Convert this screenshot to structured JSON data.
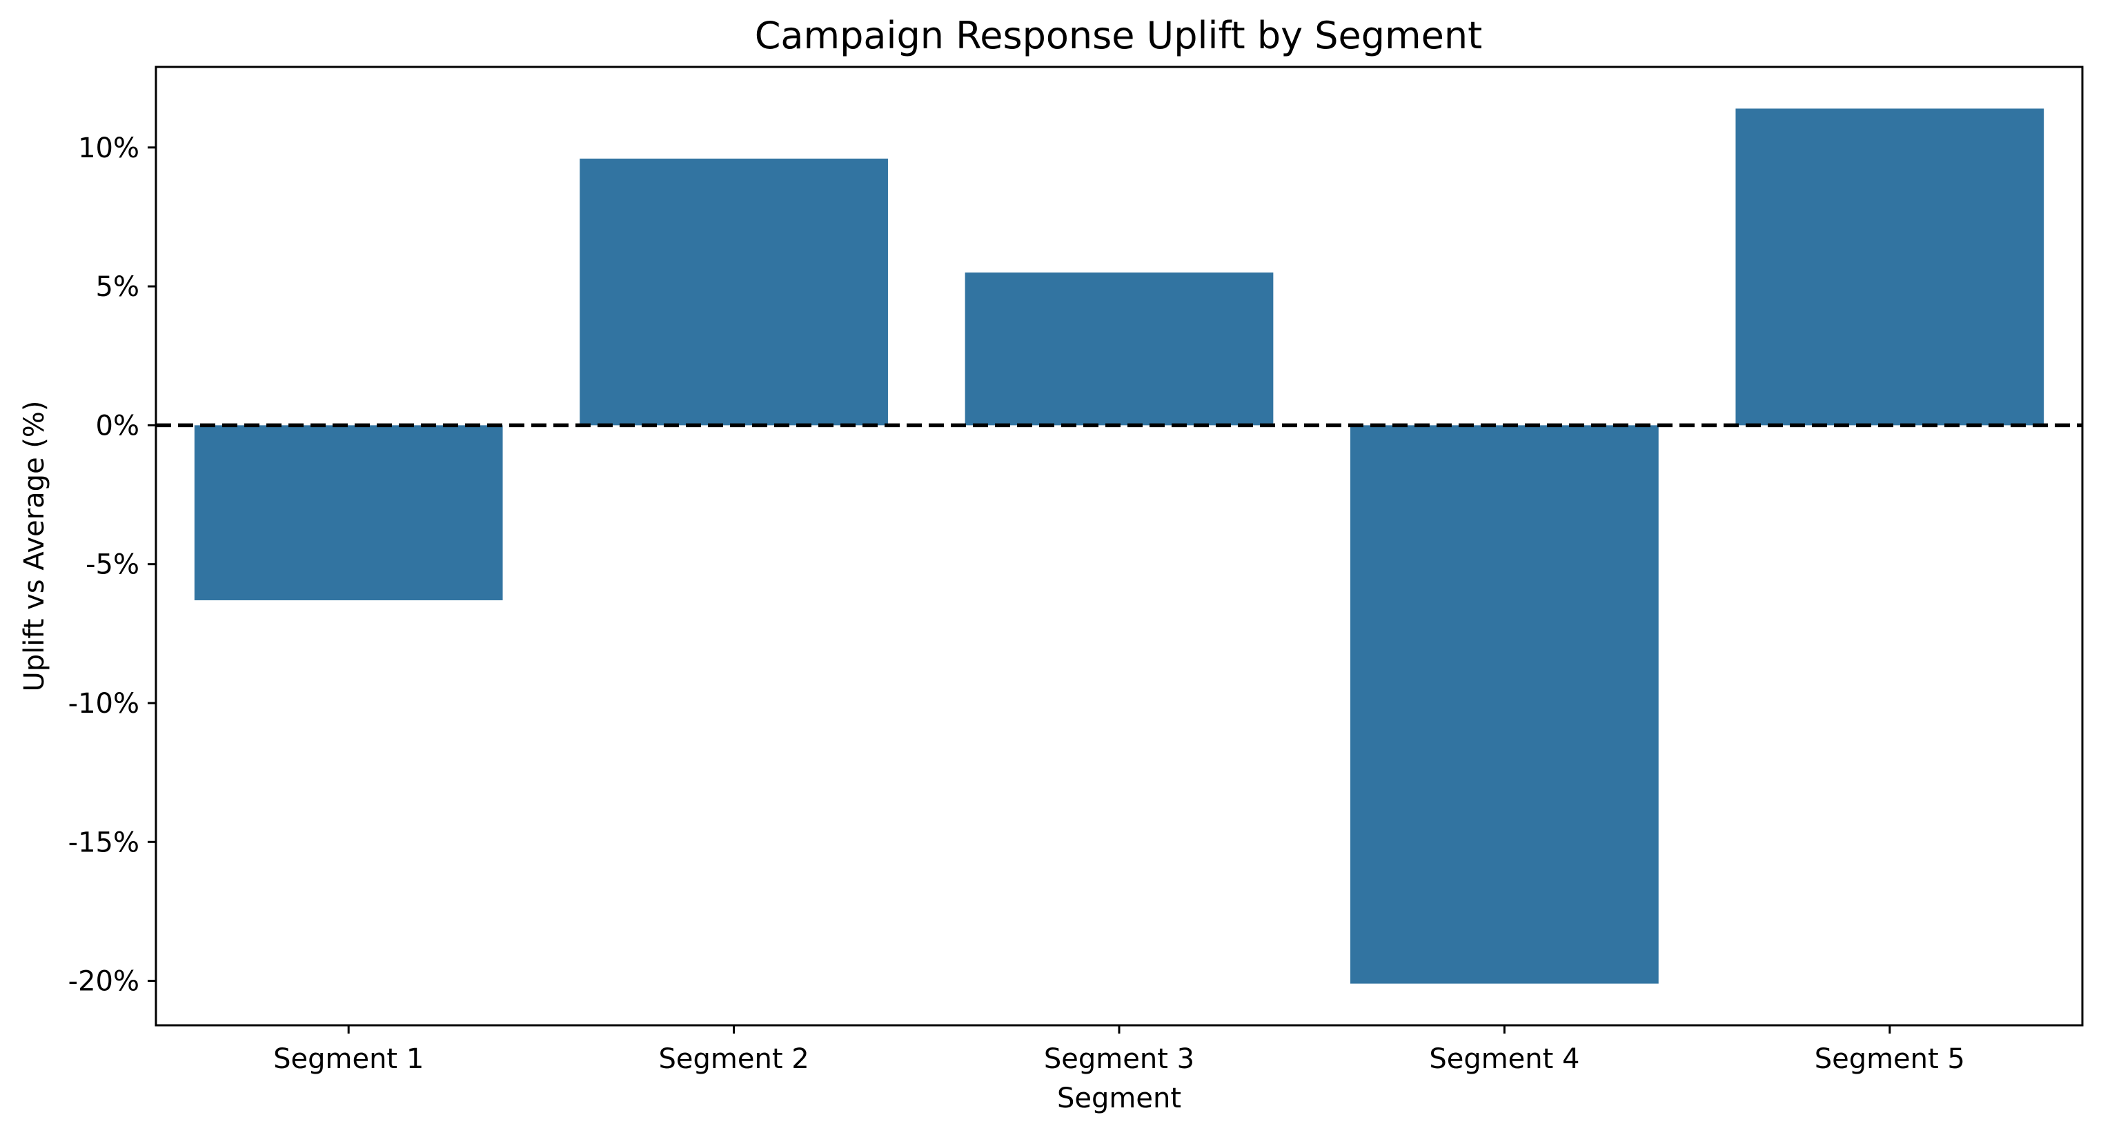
{
  "chart_data": {
    "type": "bar",
    "title": "Campaign Response Uplift by Segment",
    "xlabel": "Segment",
    "ylabel": "Uplift vs Average (%)",
    "categories": [
      "Segment 1",
      "Segment 2",
      "Segment 3",
      "Segment 4",
      "Segment 5"
    ],
    "values": [
      -6.3,
      9.6,
      5.5,
      -20.1,
      11.4
    ],
    "ylim": [
      -21.6,
      12.9
    ],
    "yticks": [
      10,
      5,
      0,
      -5,
      -10,
      -15,
      -20
    ],
    "ytick_labels": [
      "10%",
      "5%",
      "0%",
      "-5%",
      "-10%",
      "-15%",
      "-20%"
    ],
    "reference_line": {
      "value": 0,
      "style": "dashed",
      "color": "#000000"
    },
    "bar_color": "#3274a1",
    "grid": false,
    "legend": "none"
  }
}
